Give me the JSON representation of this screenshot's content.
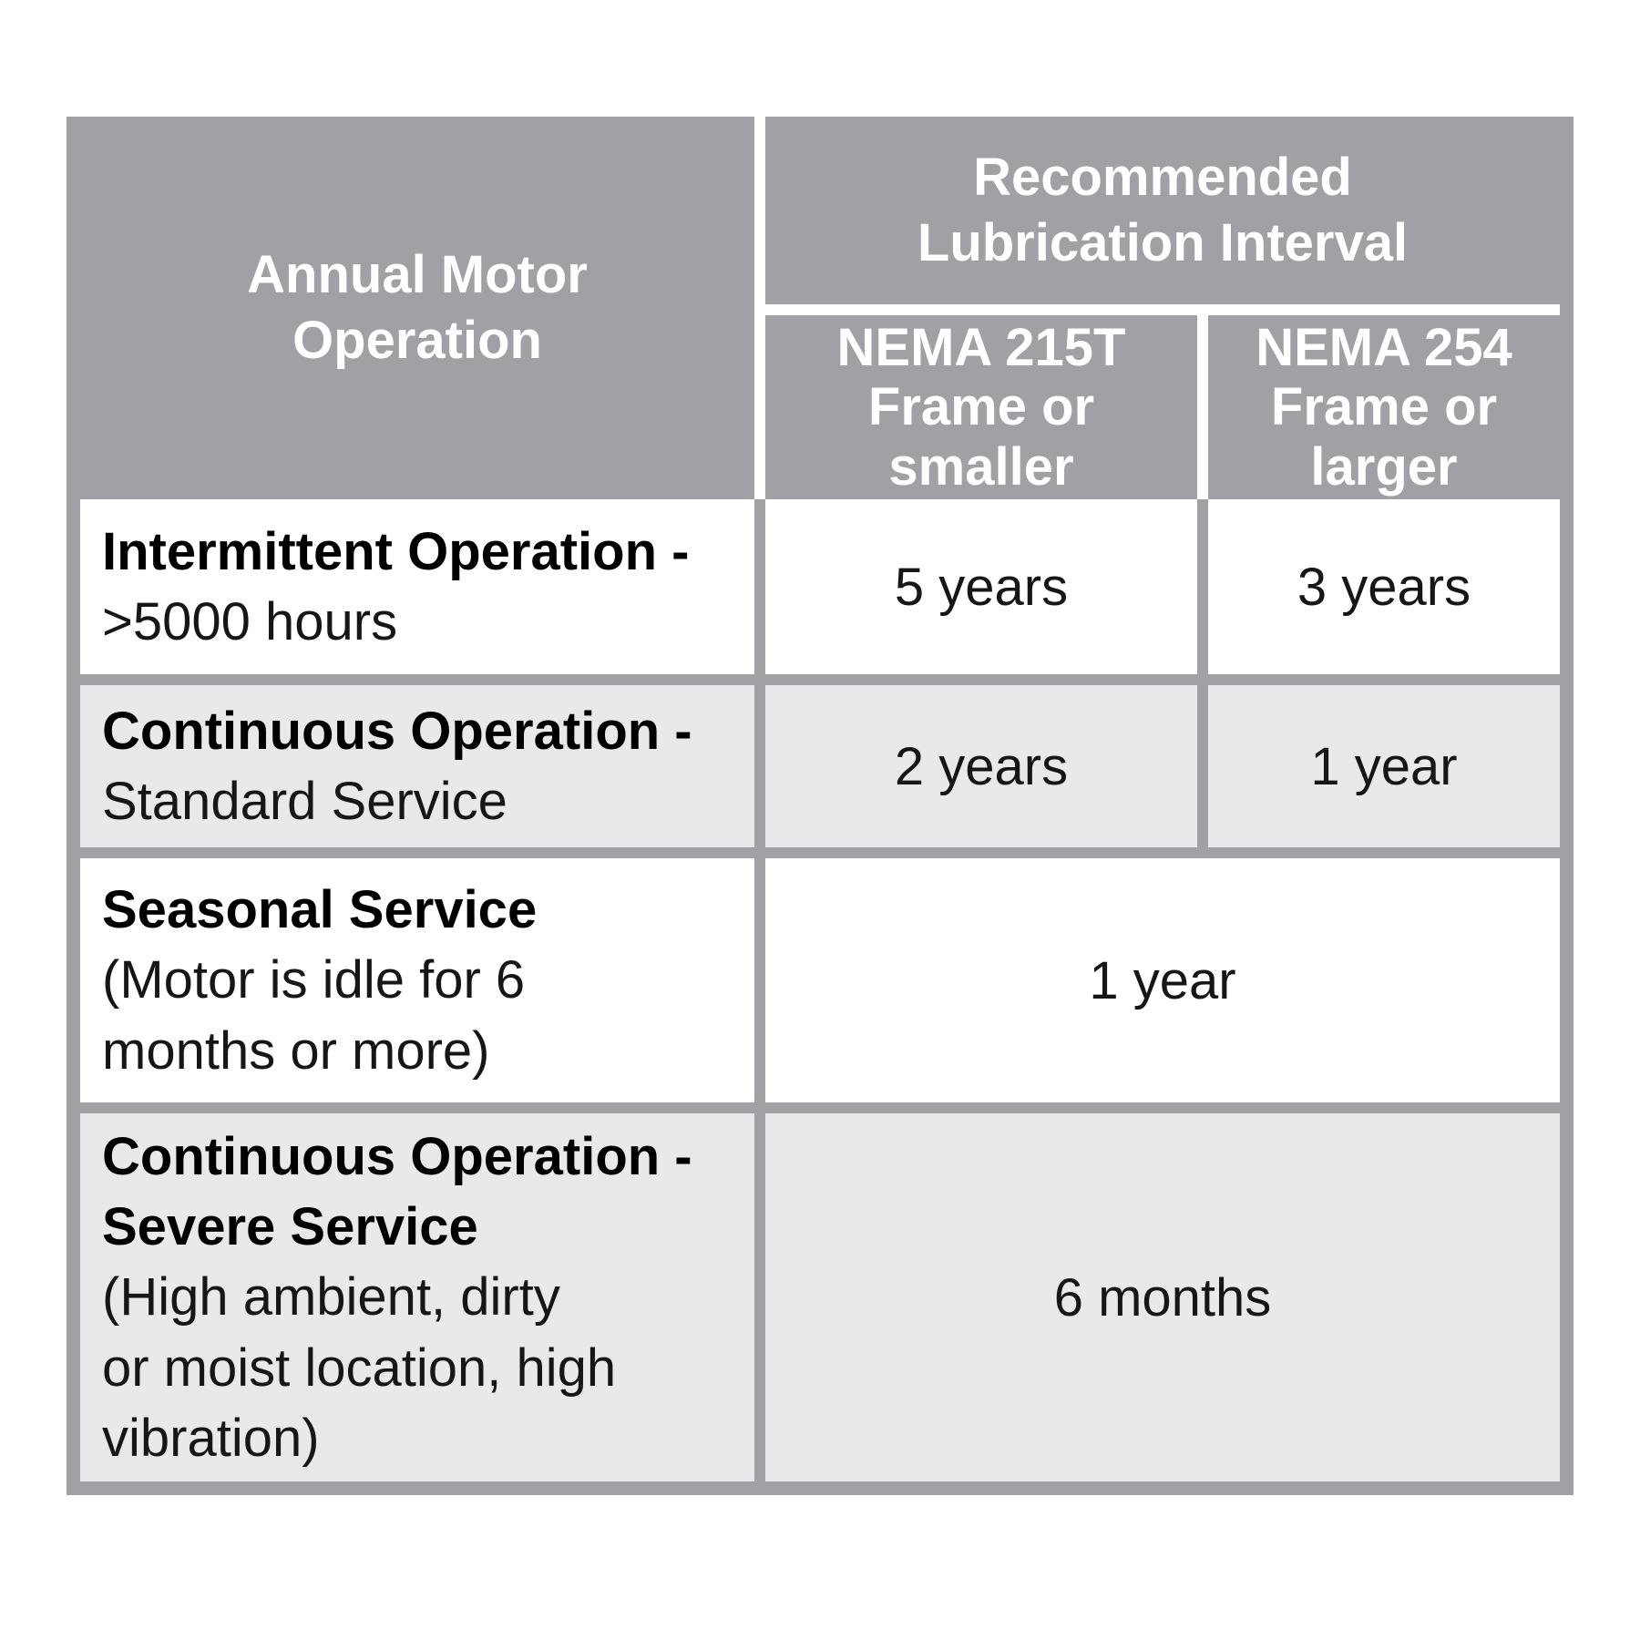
{
  "table": {
    "colors": {
      "header_bg": "#a0a1a5",
      "grid_line": "#a0a1a5",
      "row_bg": "#ffffff",
      "row_alt_bg": "#e8e9eb",
      "header_text": "#ffffff",
      "body_text": "#161616",
      "label_bold_text": "#000000"
    },
    "header": {
      "operation_label": "Annual Motor\nOperation",
      "interval_label": "Recommended\nLubrication Interval",
      "nema_small_label": "NEMA 215T\nFrame or\nsmaller",
      "nema_large_label": "NEMA 254\nFrame or\nlarger"
    },
    "rows": [
      {
        "label_bold": "Intermittent Operation -",
        "label_detail": ">5000 hours",
        "nema_small": "5 years",
        "nema_large": "3 years"
      },
      {
        "label_bold": "Continuous Operation -",
        "label_detail": "Standard Service",
        "nema_small": "2 years",
        "nema_large": "1 year"
      },
      {
        "label_bold": "Seasonal Service",
        "label_detail": "(Motor is idle for 6\nmonths or more)",
        "merged_value": "1 year"
      },
      {
        "label_bold": "Continuous Operation -\nSevere Service",
        "label_detail": "(High ambient, dirty\nor moist location, high\nvibration)",
        "merged_value": "6 months"
      }
    ]
  }
}
